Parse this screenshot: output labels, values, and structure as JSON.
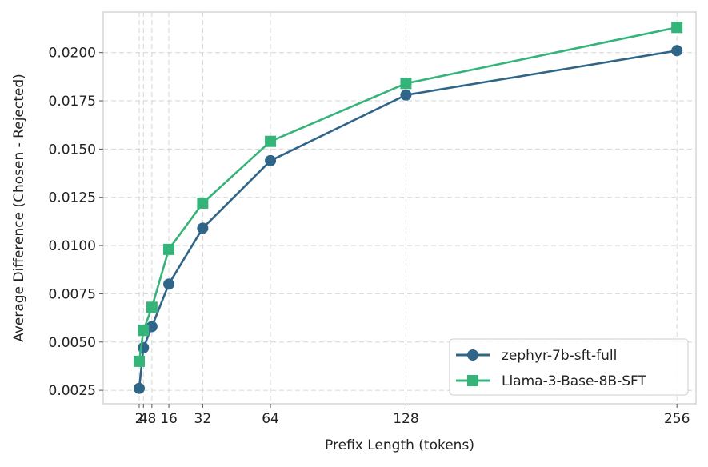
{
  "chart_data": {
    "type": "line",
    "title": "",
    "xlabel": "Prefix Length (tokens)",
    "ylabel": "Average Difference (Chosen - Rejected)",
    "x": [
      2,
      4,
      8,
      16,
      32,
      64,
      128,
      256
    ],
    "x_tick_labels": [
      "2",
      "4",
      "8",
      "16",
      "32",
      "64",
      "128",
      "256"
    ],
    "xlim": [
      -15,
      265
    ],
    "ylim": [
      0.0018,
      0.0221
    ],
    "y_ticks": [
      0.0025,
      0.005,
      0.0075,
      0.01,
      0.0125,
      0.015,
      0.0175,
      0.02
    ],
    "y_tick_labels": [
      "0.0025",
      "0.0050",
      "0.0075",
      "0.0100",
      "0.0125",
      "0.0150",
      "0.0175",
      "0.0200"
    ],
    "grid": true,
    "legend_position": "bottom-right",
    "series": [
      {
        "name": "zephyr-7b-sft-full",
        "color": "#2e6589",
        "marker": "circle",
        "values": [
          0.0026,
          0.0047,
          0.0058,
          0.008,
          0.0109,
          0.0144,
          0.0178,
          0.0201
        ]
      },
      {
        "name": "Llama-3-Base-8B-SFT",
        "color": "#35b479",
        "marker": "square",
        "values": [
          0.004,
          0.0056,
          0.0068,
          0.0098,
          0.0122,
          0.0154,
          0.0184,
          0.0213
        ]
      }
    ]
  }
}
